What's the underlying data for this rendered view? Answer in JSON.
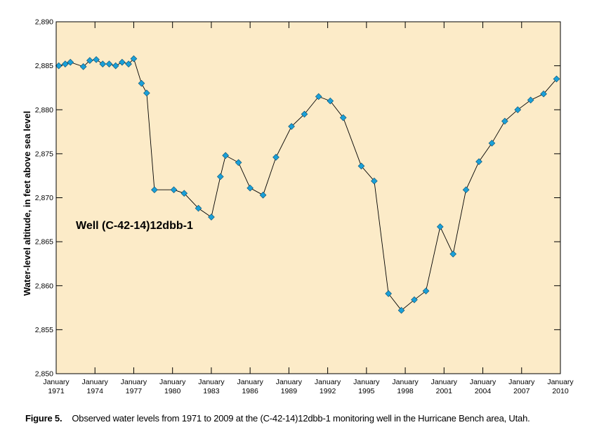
{
  "chart_data": {
    "type": "line",
    "title": "",
    "ylabel": "Water-level altitude, in feet above sea level",
    "xlabel": "",
    "ylim": [
      2850,
      2890
    ],
    "xlim": [
      1971,
      2010
    ],
    "grid": false,
    "y_ticks": [
      {
        "value": 2850,
        "label": "2,850"
      },
      {
        "value": 2855,
        "label": "2,855"
      },
      {
        "value": 2860,
        "label": "2,860"
      },
      {
        "value": 2865,
        "label": "2,865"
      },
      {
        "value": 2870,
        "label": "2,870"
      },
      {
        "value": 2875,
        "label": "2,875"
      },
      {
        "value": 2880,
        "label": "2,880"
      },
      {
        "value": 2885,
        "label": "2,885"
      },
      {
        "value": 2890,
        "label": "2,890"
      }
    ],
    "x_ticks": [
      {
        "value": 1971,
        "month": "January",
        "year": "1971"
      },
      {
        "value": 1974,
        "month": "January",
        "year": "1974"
      },
      {
        "value": 1977,
        "month": "January",
        "year": "1977"
      },
      {
        "value": 1980,
        "month": "January",
        "year": "1980"
      },
      {
        "value": 1983,
        "month": "January",
        "year": "1983"
      },
      {
        "value": 1986,
        "month": "January",
        "year": "1986"
      },
      {
        "value": 1989,
        "month": "January",
        "year": "1989"
      },
      {
        "value": 1992,
        "month": "January",
        "year": "1992"
      },
      {
        "value": 1995,
        "month": "January",
        "year": "1995"
      },
      {
        "value": 1998,
        "month": "January",
        "year": "1998"
      },
      {
        "value": 2001,
        "month": "January",
        "year": "2001"
      },
      {
        "value": 2004,
        "month": "January",
        "year": "2004"
      },
      {
        "value": 2007,
        "month": "January",
        "year": "2007"
      },
      {
        "value": 2010,
        "month": "January",
        "year": "2010"
      }
    ],
    "series": [
      {
        "color": "#1aa0d8",
        "line_color": "#000000",
        "marker": "diamond",
        "points": [
          {
            "x": 1971.2,
            "y": 2885.0
          },
          {
            "x": 1971.7,
            "y": 2885.2
          },
          {
            "x": 1972.1,
            "y": 2885.4
          },
          {
            "x": 1973.1,
            "y": 2884.9
          },
          {
            "x": 1973.6,
            "y": 2885.6
          },
          {
            "x": 1974.1,
            "y": 2885.7
          },
          {
            "x": 1974.6,
            "y": 2885.2
          },
          {
            "x": 1975.1,
            "y": 2885.2
          },
          {
            "x": 1975.6,
            "y": 2885.0
          },
          {
            "x": 1976.1,
            "y": 2885.4
          },
          {
            "x": 1976.6,
            "y": 2885.2
          },
          {
            "x": 1977.0,
            "y": 2885.8
          },
          {
            "x": 1977.6,
            "y": 2883.0
          },
          {
            "x": 1978.0,
            "y": 2881.9
          },
          {
            "x": 1978.6,
            "y": 2870.9
          },
          {
            "x": 1980.1,
            "y": 2870.9
          },
          {
            "x": 1980.9,
            "y": 2870.5
          },
          {
            "x": 1982.0,
            "y": 2868.8
          },
          {
            "x": 1983.0,
            "y": 2867.8
          },
          {
            "x": 1983.7,
            "y": 2872.4
          },
          {
            "x": 1984.1,
            "y": 2874.8
          },
          {
            "x": 1985.1,
            "y": 2874.0
          },
          {
            "x": 1986.0,
            "y": 2871.1
          },
          {
            "x": 1987.0,
            "y": 2870.3
          },
          {
            "x": 1988.0,
            "y": 2874.6
          },
          {
            "x": 1989.2,
            "y": 2878.1
          },
          {
            "x": 1990.2,
            "y": 2879.5
          },
          {
            "x": 1991.3,
            "y": 2881.5
          },
          {
            "x": 1992.2,
            "y": 2881.0
          },
          {
            "x": 1993.2,
            "y": 2879.1
          },
          {
            "x": 1994.6,
            "y": 2873.6
          },
          {
            "x": 1995.6,
            "y": 2871.9
          },
          {
            "x": 1996.7,
            "y": 2859.1
          },
          {
            "x": 1997.7,
            "y": 2857.2
          },
          {
            "x": 1998.7,
            "y": 2858.4
          },
          {
            "x": 1999.6,
            "y": 2859.4
          },
          {
            "x": 2000.7,
            "y": 2866.7
          },
          {
            "x": 2001.7,
            "y": 2863.6
          },
          {
            "x": 2002.7,
            "y": 2870.9
          },
          {
            "x": 2003.7,
            "y": 2874.1
          },
          {
            "x": 2004.7,
            "y": 2876.2
          },
          {
            "x": 2005.7,
            "y": 2878.7
          },
          {
            "x": 2006.7,
            "y": 2880.0
          },
          {
            "x": 2007.7,
            "y": 2881.1
          },
          {
            "x": 2008.7,
            "y": 2881.8
          },
          {
            "x": 2009.7,
            "y": 2883.5
          }
        ]
      }
    ],
    "annotation": "Well (C-42-14)12dbb-1",
    "colors": {
      "plot_background": "#fcebc8",
      "frame": "#000000"
    }
  },
  "caption": {
    "figure_number": "Figure 5.",
    "text": "Observed water levels from 1971 to 2009 at the (C-42-14)12dbb-1 monitoring well in the Hurricane Bench area, Utah."
  }
}
